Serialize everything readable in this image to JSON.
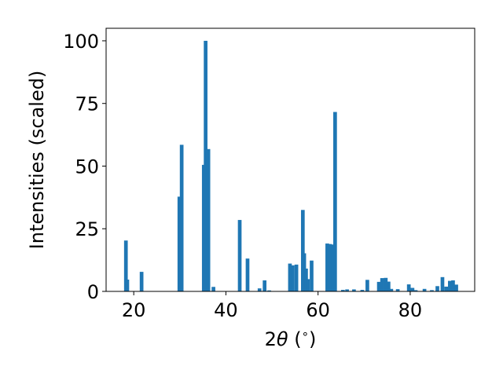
{
  "chart_data": {
    "type": "bar",
    "xlabel_main": "2",
    "xlabel_theta": "θ",
    "xlabel_unit": " (",
    "xlabel_deg": "∘",
    "xlabel_close": ")",
    "ylabel": "Intensities (scaled)",
    "xlim": [
      14,
      94
    ],
    "ylim": [
      0,
      105
    ],
    "x_ticks": [
      20,
      40,
      60,
      80
    ],
    "x_tick_labels": [
      "20",
      "40",
      "60",
      "80"
    ],
    "y_ticks": [
      0,
      25,
      50,
      75,
      100
    ],
    "y_tick_labels": [
      "0",
      "25",
      "50",
      "75",
      "100"
    ],
    "bar_width": 0.8,
    "bar_color": "#1f77b4",
    "x": [
      18.3,
      18.6,
      21.7,
      29.9,
      30.4,
      35.2,
      35.6,
      36.2,
      37.3,
      43.0,
      44.7,
      47.3,
      48.4,
      49.4,
      53.9,
      54.5,
      55.3,
      56.7,
      57.0,
      57.4,
      57.8,
      58.6,
      62.0,
      62.6,
      63.2,
      63.7,
      65.4,
      66.3,
      67.8,
      69.6,
      70.7,
      73.2,
      73.9,
      74.7,
      75.3,
      75.9,
      77.3,
      79.7,
      80.5,
      81.2,
      83.1,
      84.7,
      85.9,
      87.0,
      87.8,
      88.6,
      89.3,
      90.0
    ],
    "values": [
      20.3,
      4.7,
      7.8,
      37.8,
      58.5,
      50.5,
      100.0,
      56.8,
      1.8,
      28.5,
      13.1,
      1.2,
      4.4,
      0.4,
      11.1,
      10.4,
      10.7,
      32.5,
      15.2,
      9.1,
      4.9,
      12.3,
      19.1,
      18.9,
      18.7,
      71.6,
      0.6,
      0.8,
      0.8,
      0.6,
      4.6,
      3.8,
      5.3,
      5.4,
      3.9,
      1.0,
      0.9,
      2.8,
      1.4,
      0.5,
      1.0,
      0.5,
      2.1,
      5.7,
      1.9,
      4.2,
      4.4,
      2.7
    ]
  }
}
